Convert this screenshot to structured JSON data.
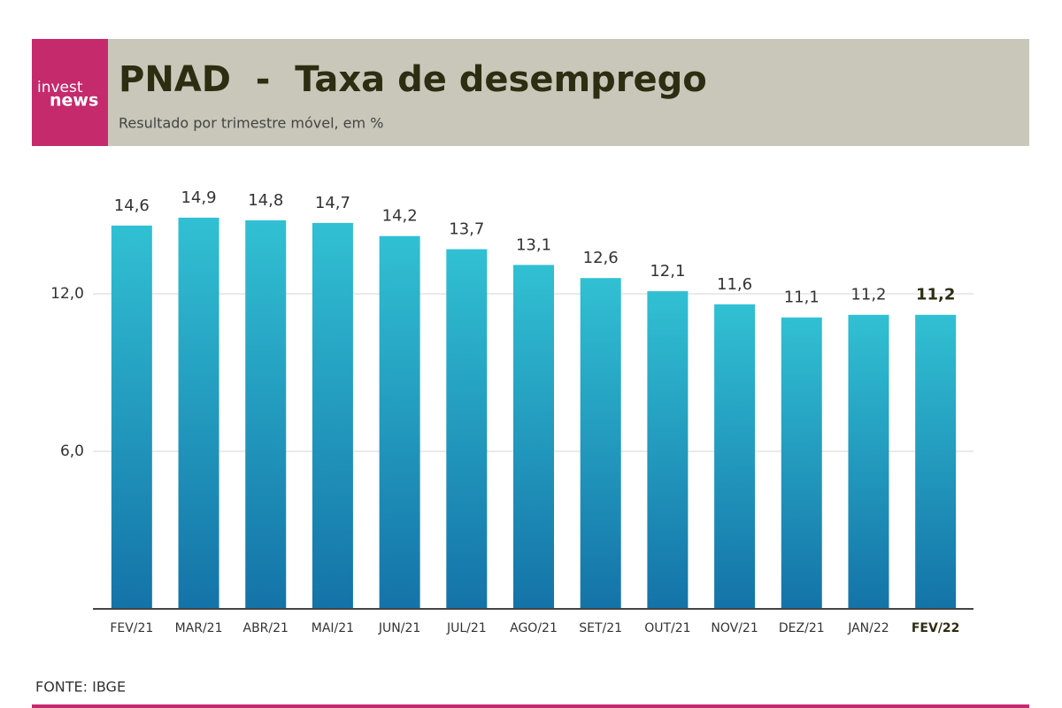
{
  "chart_data": {
    "type": "bar",
    "logo_top": "invest",
    "logo_bottom": "news",
    "title": "PNAD  -  Taxa de desemprego",
    "subtitle": "Resultado por trimestre móvel, em %",
    "categories": [
      "FEV/21",
      "MAR/21",
      "ABR/21",
      "MAI/21",
      "JUN/21",
      "JUL/21",
      "AGO/21",
      "SET/21",
      "OUT/21",
      "NOV/21",
      "DEZ/21",
      "JAN/22",
      "FEV/22"
    ],
    "values": [
      14.6,
      14.9,
      14.8,
      14.7,
      14.2,
      13.7,
      13.1,
      12.6,
      12.1,
      11.6,
      11.1,
      11.2,
      11.2
    ],
    "value_labels": [
      "14,6",
      "14,9",
      "14,8",
      "14,7",
      "14,2",
      "13,7",
      "13,1",
      "12,6",
      "12,1",
      "11,6",
      "11,1",
      "11,2",
      "11,2"
    ],
    "color": "#1fa3c8",
    "ylim": [
      0,
      15
    ],
    "yticks": [
      {
        "value": 6,
        "label": "6,0"
      },
      {
        "value": 12,
        "label": "12,0"
      }
    ],
    "grid": true,
    "source": "FONTE: IBGE"
  }
}
